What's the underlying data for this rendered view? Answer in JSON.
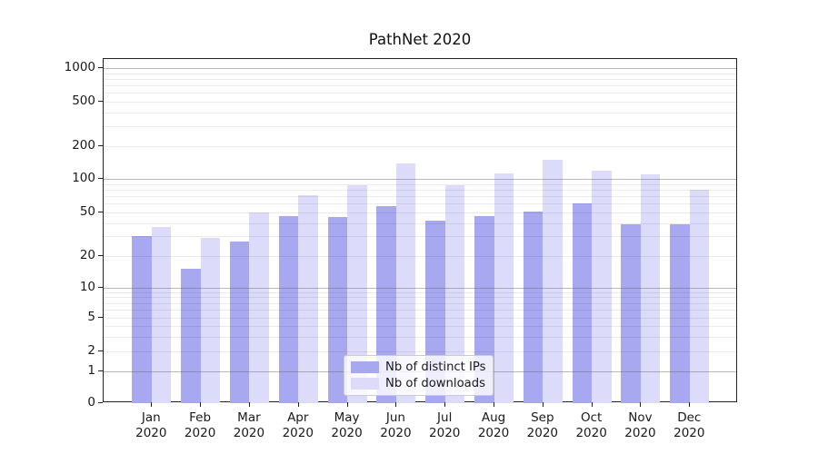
{
  "chart_data": {
    "type": "bar",
    "title": "PathNet 2020",
    "categories": [
      "Jan",
      "Feb",
      "Mar",
      "Apr",
      "May",
      "Jun",
      "Jul",
      "Aug",
      "Sep",
      "Oct",
      "Nov",
      "Dec"
    ],
    "year_label": "2020",
    "series": [
      {
        "name": "Nb of distinct IPs",
        "color": "#a8a8f1",
        "values": [
          30,
          15,
          27,
          46,
          45,
          57,
          42,
          46,
          51,
          60,
          39,
          39
        ]
      },
      {
        "name": "Nb of downloads",
        "color": "#dcdcfa",
        "values": [
          37,
          29,
          50,
          71,
          87,
          140,
          87,
          112,
          150,
          120,
          110,
          80
        ]
      }
    ],
    "yscale": "symlog",
    "ylim": [
      0,
      1000
    ],
    "ytick_values": [
      0,
      1,
      2,
      5,
      10,
      20,
      50,
      100,
      200,
      500,
      1000
    ],
    "major_gridline_values": [
      1,
      10,
      100,
      1000
    ],
    "minor_gridline_values": [
      2,
      3,
      4,
      5,
      6,
      7,
      8,
      9,
      20,
      30,
      40,
      50,
      60,
      70,
      80,
      90,
      200,
      300,
      400,
      500,
      600,
      700,
      800,
      900
    ],
    "grid": "both",
    "legend_position": "lower-center",
    "xlabel": "",
    "ylabel": ""
  }
}
